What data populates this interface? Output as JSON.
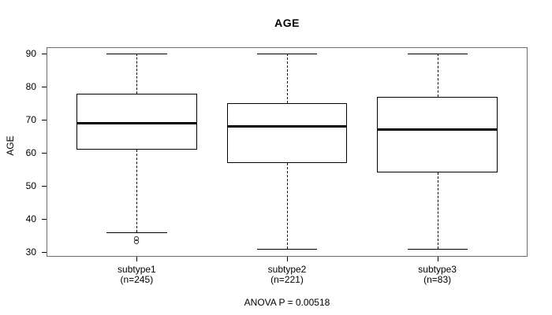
{
  "figure": {
    "title": "AGE",
    "y_axis_label": "AGE",
    "annotation": "ANOVA P = 0.00518"
  },
  "chart_data": {
    "type": "boxplot",
    "title": "AGE",
    "xlabel": "",
    "ylabel": "AGE",
    "ylim": [
      28.5,
      92
    ],
    "yticks": [
      30,
      40,
      50,
      60,
      70,
      80,
      90
    ],
    "grid": false,
    "legend": "none",
    "annotation": "ANOVA P = 0.00518",
    "categories": [
      "subtype1",
      "subtype2",
      "subtype3"
    ],
    "groups": [
      {
        "label": "subtype1",
        "count_label": "(n=245)",
        "n": 245,
        "whisker_low": 36,
        "q1": 61,
        "median": 69,
        "q3": 78,
        "whisker_high": 90,
        "outliers": [
          34,
          33
        ]
      },
      {
        "label": "subtype2",
        "count_label": "(n=221)",
        "n": 221,
        "whisker_low": 31,
        "q1": 57,
        "median": 68,
        "q3": 75,
        "whisker_high": 90,
        "outliers": []
      },
      {
        "label": "subtype3",
        "count_label": "(n=83)",
        "n": 83,
        "whisker_low": 31,
        "q1": 54,
        "median": 67,
        "q3": 77,
        "whisker_high": 90,
        "outliers": []
      }
    ],
    "colors": {
      "stroke": "#000000",
      "frame": "#6e6e6e",
      "background": "#ffffff"
    }
  }
}
